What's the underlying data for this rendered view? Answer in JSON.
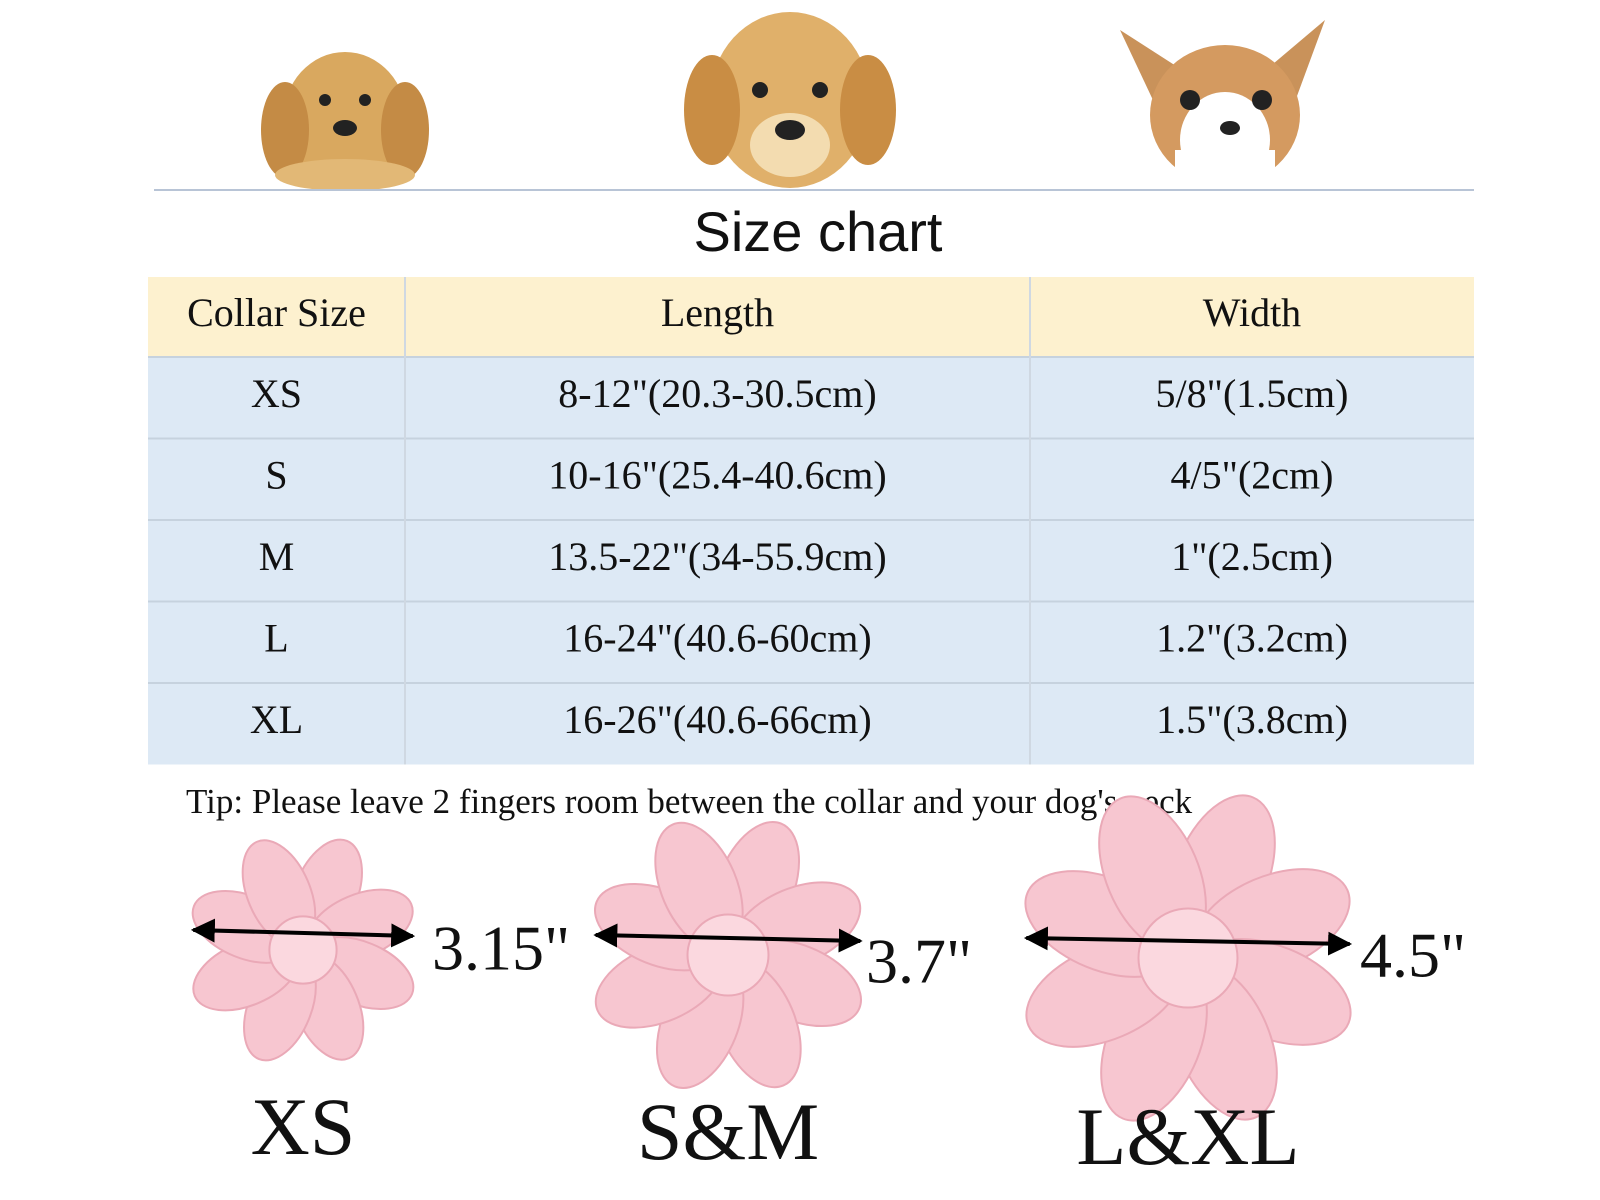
{
  "header": {
    "title": "Size chart"
  },
  "table": {
    "columns": [
      "Collar Size",
      "Length",
      "Width"
    ],
    "rows": [
      [
        "XS",
        "8-12\"(20.3-30.5cm)",
        "5/8\"(1.5cm)"
      ],
      [
        "S",
        "10-16\"(25.4-40.6cm)",
        "4/5\"(2cm)"
      ],
      [
        "M",
        "13.5-22\"(34-55.9cm)",
        "1\"(2.5cm)"
      ],
      [
        "L",
        "16-24\"(40.6-60cm)",
        "1.2\"(3.2cm)"
      ],
      [
        "XL",
        "16-26\"(40.6-66cm)",
        "1.5\"(3.8cm)"
      ]
    ]
  },
  "tip": "Tip: Please leave 2 fingers room between the collar and your dog's neck",
  "flowers": [
    {
      "measurement": "3.15\"",
      "size": "XS"
    },
    {
      "measurement": "3.7\"",
      "size": "S&M"
    },
    {
      "measurement": "4.5\"",
      "size": "L&XL"
    }
  ]
}
